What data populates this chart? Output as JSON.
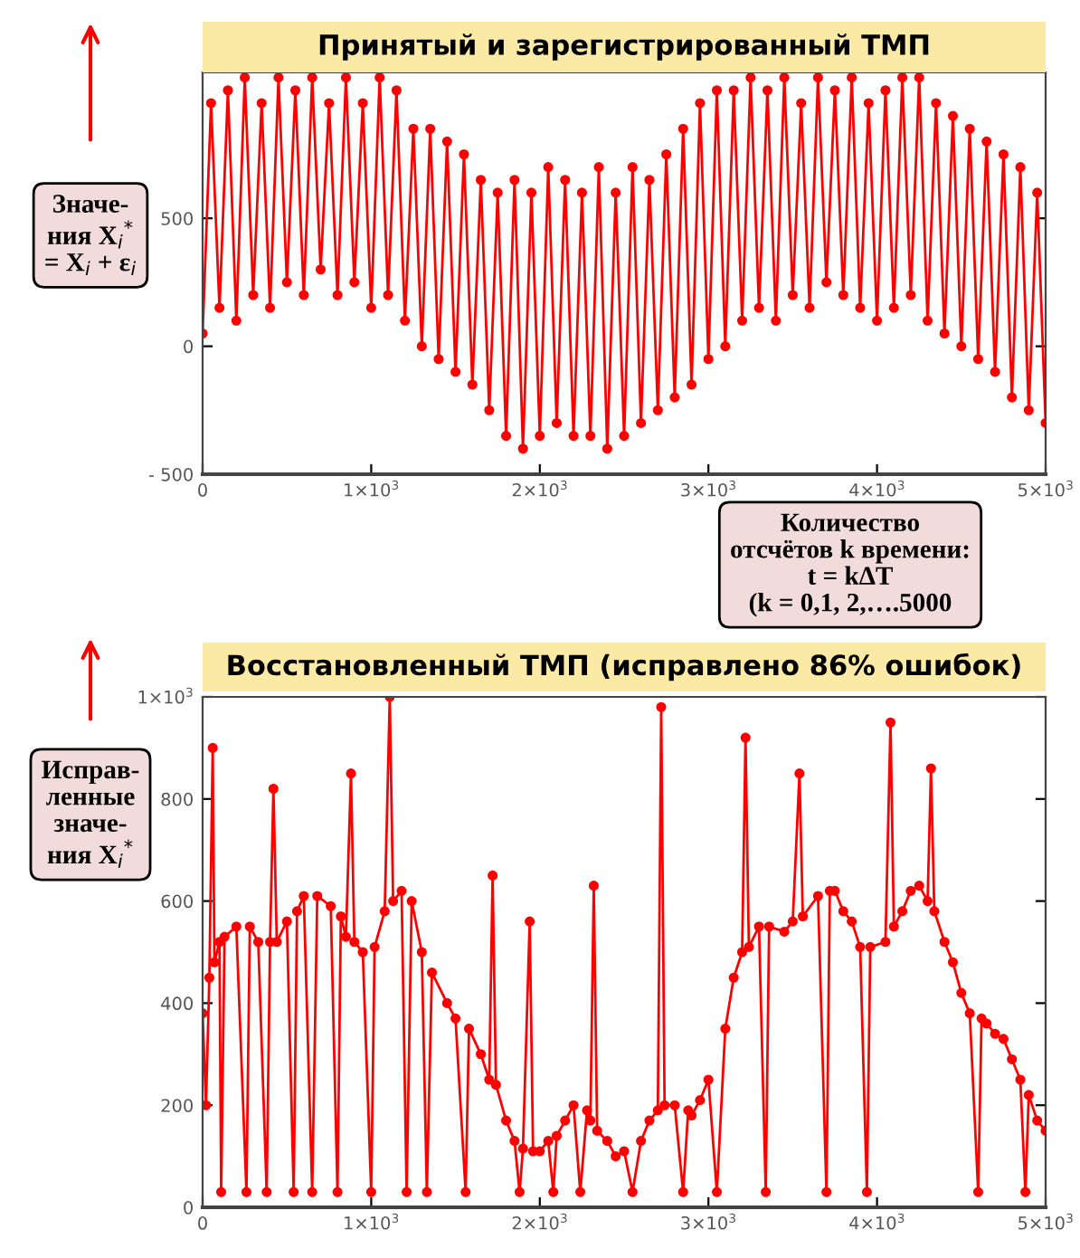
{
  "chart_data": [
    {
      "type": "line",
      "title": "Принятый и зарегистрированный ТМП",
      "marker": "circle",
      "line_style": "solid",
      "grid": false,
      "legend": false,
      "xlim": [
        0,
        5000
      ],
      "xticks": [
        0,
        {
          "value": 1000,
          "label": "1×10$^{3}$"
        },
        {
          "value": 2000,
          "label": "2×10$^{3}$"
        },
        {
          "value": 3000,
          "label": "3×10$^{3}$"
        },
        {
          "value": 4000,
          "label": "4×10$^{3}$"
        },
        {
          "value": 5000,
          "label": "5×10$^{3}$"
        }
      ],
      "ylim": [
        -500,
        1070
      ],
      "yticks": [
        {
          "value": -500,
          "label": "- 500"
        },
        0,
        500
      ],
      "annotations": [
        "Значе-\nния X$_{i}$$^{*}$\n= X$_{i}$ + ε$_{i}$",
        "Количество\nотсчётов k времени:\nt = kΔT\n(k = 0,1, 2,….5000"
      ],
      "series": [
        {
          "color": "#ff0000",
          "x": [
            0,
            50,
            100,
            150,
            200,
            250,
            300,
            350,
            400,
            450,
            500,
            550,
            600,
            650,
            700,
            750,
            800,
            850,
            900,
            950,
            1000,
            1050,
            1100,
            1150,
            1200,
            1250,
            1300,
            1350,
            1400,
            1450,
            1500,
            1550,
            1600,
            1650,
            1700,
            1750,
            1800,
            1850,
            1900,
            1950,
            2000,
            2050,
            2100,
            2150,
            2200,
            2250,
            2300,
            2350,
            2400,
            2450,
            2500,
            2550,
            2600,
            2650,
            2700,
            2750,
            2800,
            2850,
            2900,
            2950,
            3000,
            3050,
            3100,
            3150,
            3200,
            3250,
            3300,
            3350,
            3400,
            3450,
            3500,
            3550,
            3600,
            3650,
            3700,
            3750,
            3800,
            3850,
            3900,
            3950,
            4000,
            4050,
            4100,
            4150,
            4200,
            4250,
            4300,
            4350,
            4400,
            4450,
            4500,
            4550,
            4600,
            4650,
            4700,
            4750,
            4800,
            4850,
            4900,
            4950,
            5000
          ],
          "values": [
            50,
            950,
            150,
            1000,
            100,
            1050,
            200,
            950,
            150,
            1050,
            250,
            1000,
            200,
            1050,
            300,
            950,
            200,
            1050,
            250,
            950,
            150,
            1050,
            200,
            1000,
            100,
            850,
            0,
            850,
            -50,
            800,
            -100,
            750,
            -150,
            650,
            -250,
            600,
            -350,
            650,
            -400,
            600,
            -350,
            700,
            -300,
            650,
            -350,
            600,
            -350,
            700,
            -400,
            600,
            -350,
            700,
            -300,
            650,
            -250,
            750,
            -200,
            850,
            -150,
            950,
            -50,
            1000,
            0,
            1000,
            100,
            1050,
            150,
            1000,
            100,
            1050,
            200,
            950,
            150,
            1050,
            250,
            1000,
            200,
            1050,
            150,
            950,
            100,
            1000,
            150,
            1050,
            200,
            1050,
            100,
            950,
            50,
            900,
            0,
            850,
            -50,
            800,
            -100,
            750,
            -200,
            700,
            -250,
            600,
            -300
          ]
        }
      ]
    },
    {
      "type": "line",
      "title": "Восстановленный ТМП (исправлено 86% ошибок)",
      "marker": "circle",
      "line_style": "solid",
      "grid": false,
      "legend": false,
      "xlim": [
        0,
        5000
      ],
      "xticks": [
        0,
        {
          "value": 1000,
          "label": "1×10$^{3}$"
        },
        {
          "value": 2000,
          "label": "2×10$^{3}$"
        },
        {
          "value": 3000,
          "label": "3×10$^{3}$"
        },
        {
          "value": 4000,
          "label": "4×10$^{3}$"
        },
        {
          "value": 5000,
          "label": "5×10$^{3}$"
        }
      ],
      "ylim": [
        0,
        1000
      ],
      "yticks": [
        0,
        200,
        400,
        600,
        800,
        {
          "value": 1000,
          "label": "1×10$^{3}$"
        }
      ],
      "annotations": [
        "Исправ-\nленные\nзначе-\nния X$_{i}$$^{*}$"
      ],
      "series": [
        {
          "color": "#ff0000",
          "x": [
            0,
            20,
            40,
            60,
            70,
            100,
            110,
            130,
            200,
            260,
            280,
            330,
            380,
            400,
            420,
            440,
            500,
            540,
            560,
            600,
            650,
            680,
            760,
            800,
            820,
            850,
            880,
            900,
            950,
            1000,
            1020,
            1080,
            1110,
            1130,
            1180,
            1210,
            1240,
            1300,
            1330,
            1360,
            1450,
            1500,
            1560,
            1580,
            1650,
            1700,
            1720,
            1740,
            1800,
            1850,
            1880,
            1900,
            1940,
            1960,
            2000,
            2050,
            2080,
            2100,
            2150,
            2200,
            2240,
            2280,
            2300,
            2320,
            2340,
            2400,
            2450,
            2500,
            2550,
            2600,
            2650,
            2700,
            2720,
            2740,
            2800,
            2850,
            2880,
            2900,
            2950,
            3000,
            3050,
            3100,
            3150,
            3200,
            3220,
            3240,
            3300,
            3340,
            3360,
            3450,
            3500,
            3540,
            3560,
            3650,
            3700,
            3720,
            3750,
            3800,
            3850,
            3900,
            3940,
            3960,
            4050,
            4080,
            4100,
            4150,
            4200,
            4250,
            4300,
            4320,
            4340,
            4400,
            4450,
            4500,
            4550,
            4600,
            4620,
            4650,
            4700,
            4750,
            4800,
            4850,
            4880,
            4900,
            4950,
            5000
          ],
          "values": [
            380,
            200,
            450,
            900,
            480,
            520,
            30,
            530,
            550,
            30,
            550,
            520,
            30,
            520,
            820,
            520,
            560,
            30,
            580,
            610,
            30,
            610,
            590,
            30,
            570,
            530,
            850,
            520,
            500,
            30,
            510,
            580,
            1000,
            600,
            620,
            30,
            600,
            500,
            30,
            460,
            400,
            370,
            30,
            350,
            300,
            250,
            650,
            240,
            170,
            130,
            30,
            115,
            560,
            110,
            110,
            130,
            30,
            140,
            170,
            200,
            30,
            190,
            170,
            630,
            150,
            130,
            100,
            110,
            30,
            130,
            170,
            190,
            980,
            200,
            200,
            30,
            190,
            180,
            210,
            250,
            30,
            350,
            450,
            500,
            920,
            510,
            550,
            30,
            550,
            540,
            560,
            850,
            570,
            610,
            30,
            620,
            620,
            580,
            560,
            510,
            30,
            510,
            520,
            950,
            550,
            580,
            620,
            630,
            600,
            860,
            580,
            520,
            480,
            420,
            380,
            30,
            370,
            360,
            340,
            330,
            290,
            250,
            30,
            220,
            170,
            150
          ]
        }
      ]
    }
  ]
}
